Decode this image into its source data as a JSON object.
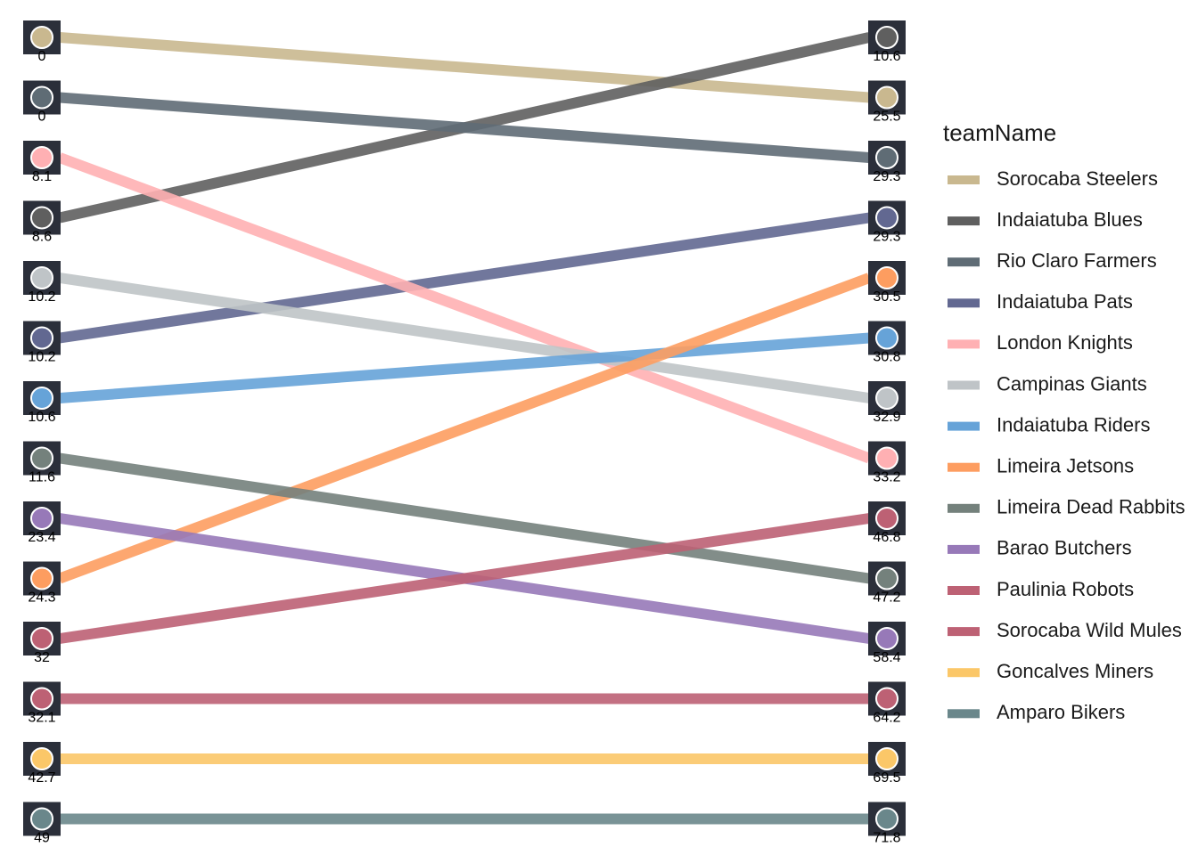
{
  "chart_data": {
    "type": "slope",
    "legend_title": "teamName",
    "legend_position": "right",
    "series": [
      {
        "name": "Sorocaba Steelers",
        "color": "#c9b88f",
        "values": [
          0,
          25.5
        ],
        "ranks": [
          1,
          2
        ]
      },
      {
        "name": "Indaiatuba Blues",
        "color": "#5f5f5f",
        "values": [
          8.6,
          10.6
        ],
        "ranks": [
          4,
          1
        ]
      },
      {
        "name": "Rio Claro Farmers",
        "color": "#5f6c75",
        "values": [
          0,
          29.3
        ],
        "ranks": [
          2,
          3
        ]
      },
      {
        "name": "Indaiatuba Pats",
        "color": "#626891",
        "values": [
          10.2,
          29.3
        ],
        "ranks": [
          6,
          4
        ]
      },
      {
        "name": "London Knights",
        "color": "#ffb0b3",
        "values": [
          8.1,
          33.2
        ],
        "ranks": [
          3,
          8
        ]
      },
      {
        "name": "Campinas Giants",
        "color": "#bfc4c7",
        "values": [
          10.2,
          32.9
        ],
        "ranks": [
          5,
          7
        ]
      },
      {
        "name": "Indaiatuba Riders",
        "color": "#66a3d8",
        "values": [
          10.6,
          30.8
        ],
        "ranks": [
          7,
          6
        ]
      },
      {
        "name": "Limeira Jetsons",
        "color": "#fd9d60",
        "values": [
          24.3,
          30.5
        ],
        "ranks": [
          10,
          5
        ]
      },
      {
        "name": "Limeira Dead Rabbits",
        "color": "#74817c",
        "values": [
          11.6,
          47.2
        ],
        "ranks": [
          8,
          10
        ]
      },
      {
        "name": "Barao Butchers",
        "color": "#9779b8",
        "values": [
          23.4,
          58.4
        ],
        "ranks": [
          9,
          11
        ]
      },
      {
        "name": "Paulinia Robots",
        "color": "#bd6174",
        "values": [
          32,
          46.8
        ],
        "ranks": [
          11,
          9
        ]
      },
      {
        "name": "Sorocaba Wild Mules",
        "color": "#bd6174",
        "values": [
          32.1,
          64.2
        ],
        "ranks": [
          12,
          12
        ]
      },
      {
        "name": "Goncalves Miners",
        "color": "#fbc768",
        "values": [
          42.7,
          69.5
        ],
        "ranks": [
          13,
          13
        ]
      },
      {
        "name": "Amparo Bikers",
        "color": "#6a878b",
        "values": [
          49,
          71.8
        ],
        "ranks": [
          14,
          14
        ]
      }
    ]
  }
}
